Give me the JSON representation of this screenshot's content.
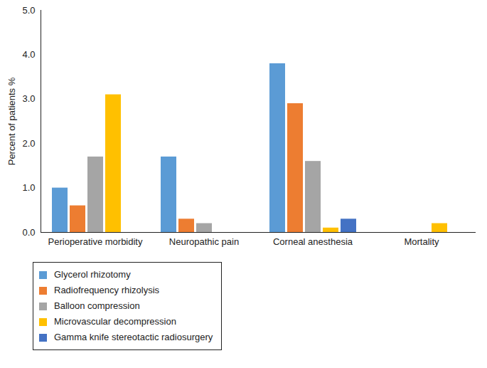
{
  "chart_data": {
    "type": "bar",
    "y_label": "Percent of patients %",
    "categories": [
      "Perioperative morbidity",
      "Neuropathic pain",
      "Corneal anesthesia",
      "Mortality"
    ],
    "series": [
      {
        "name": "Glycerol rhizotomy",
        "color": "#5b9bd5",
        "values": [
          1.0,
          1.7,
          3.8,
          0
        ]
      },
      {
        "name": "Radiofrequency rhizolysis",
        "color": "#ed7d31",
        "values": [
          0.6,
          0.3,
          2.9,
          0
        ]
      },
      {
        "name": "Balloon compression",
        "color": "#a5a5a5",
        "values": [
          1.7,
          0.2,
          1.6,
          0
        ]
      },
      {
        "name": "Microvascular decompression",
        "color": "#ffc000",
        "values": [
          3.1,
          0,
          0.1,
          0.2
        ]
      },
      {
        "name": "Gamma knife stereotactic radiosurgery",
        "color": "#4472c4",
        "values": [
          0,
          0,
          0.3,
          0
        ]
      }
    ],
    "ylim": [
      0,
      5
    ],
    "yticks": [
      0,
      1,
      2,
      3,
      4,
      5
    ],
    "grid": false,
    "legend": "bottom-left"
  }
}
